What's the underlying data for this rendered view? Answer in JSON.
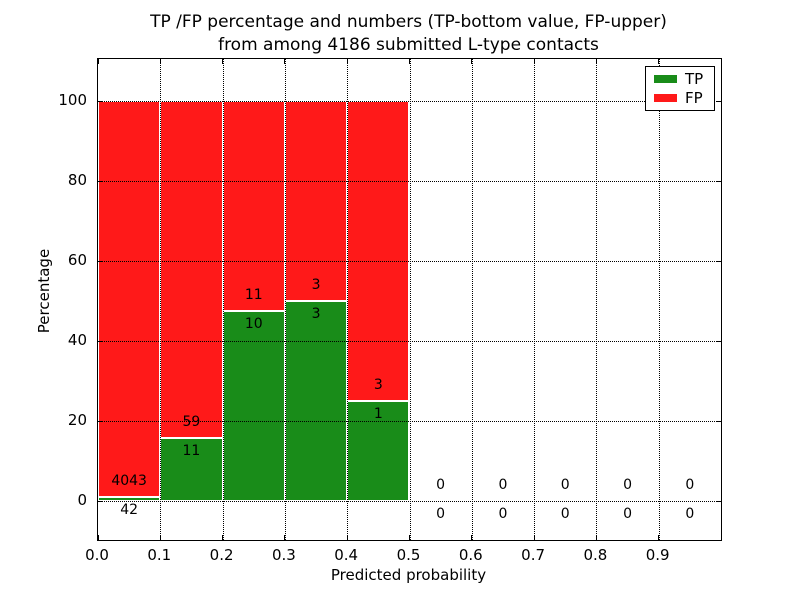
{
  "chart_data": {
    "type": "bar",
    "stacked": true,
    "title_line1": "TP /FP percentage and numbers (TP-bottom value, FP-upper)",
    "title_line2": "from among 4186 submitted L-type contacts",
    "xlabel": "Predicted probability",
    "ylabel": "Percentage",
    "xlim": [
      0.0,
      1.0
    ],
    "ylim": [
      -10,
      110.5
    ],
    "xtick_labels": [
      "0.0",
      "0.1",
      "0.2",
      "0.3",
      "0.4",
      "0.5",
      "0.6",
      "0.7",
      "0.8",
      "0.9"
    ],
    "ytick_labels": [
      "0",
      "20",
      "40",
      "60",
      "80",
      "100"
    ],
    "ytick_values": [
      0,
      20,
      40,
      60,
      80,
      100
    ],
    "grid_style": "dotted",
    "total_contacts": 4186,
    "bins": [
      {
        "range": [
          0.0,
          0.1
        ],
        "tp": 42,
        "fp": 4043,
        "tp_pct": 1.03,
        "fp_pct": 98.97
      },
      {
        "range": [
          0.1,
          0.2
        ],
        "tp": 11,
        "fp": 59,
        "tp_pct": 15.71,
        "fp_pct": 84.29
      },
      {
        "range": [
          0.2,
          0.3
        ],
        "tp": 10,
        "fp": 11,
        "tp_pct": 47.62,
        "fp_pct": 52.38
      },
      {
        "range": [
          0.3,
          0.4
        ],
        "tp": 3,
        "fp": 3,
        "tp_pct": 50.0,
        "fp_pct": 50.0
      },
      {
        "range": [
          0.4,
          0.5
        ],
        "tp": 1,
        "fp": 3,
        "tp_pct": 25.0,
        "fp_pct": 75.0
      },
      {
        "range": [
          0.5,
          0.6
        ],
        "tp": 0,
        "fp": 0,
        "tp_pct": 0,
        "fp_pct": 0
      },
      {
        "range": [
          0.6,
          0.7
        ],
        "tp": 0,
        "fp": 0,
        "tp_pct": 0,
        "fp_pct": 0
      },
      {
        "range": [
          0.7,
          0.8
        ],
        "tp": 0,
        "fp": 0,
        "tp_pct": 0,
        "fp_pct": 0
      },
      {
        "range": [
          0.8,
          0.9
        ],
        "tp": 0,
        "fp": 0,
        "tp_pct": 0,
        "fp_pct": 0
      },
      {
        "range": [
          0.9,
          1.0
        ],
        "tp": 0,
        "fp": 0,
        "tp_pct": 0,
        "fp_pct": 0
      }
    ],
    "colors": {
      "tp": "#198c19",
      "fp": "#ff1919"
    },
    "legend": {
      "position": "upper-right",
      "entries": [
        {
          "label": "TP",
          "color": "#198c19"
        },
        {
          "label": "FP",
          "color": "#ff1919"
        }
      ]
    }
  }
}
